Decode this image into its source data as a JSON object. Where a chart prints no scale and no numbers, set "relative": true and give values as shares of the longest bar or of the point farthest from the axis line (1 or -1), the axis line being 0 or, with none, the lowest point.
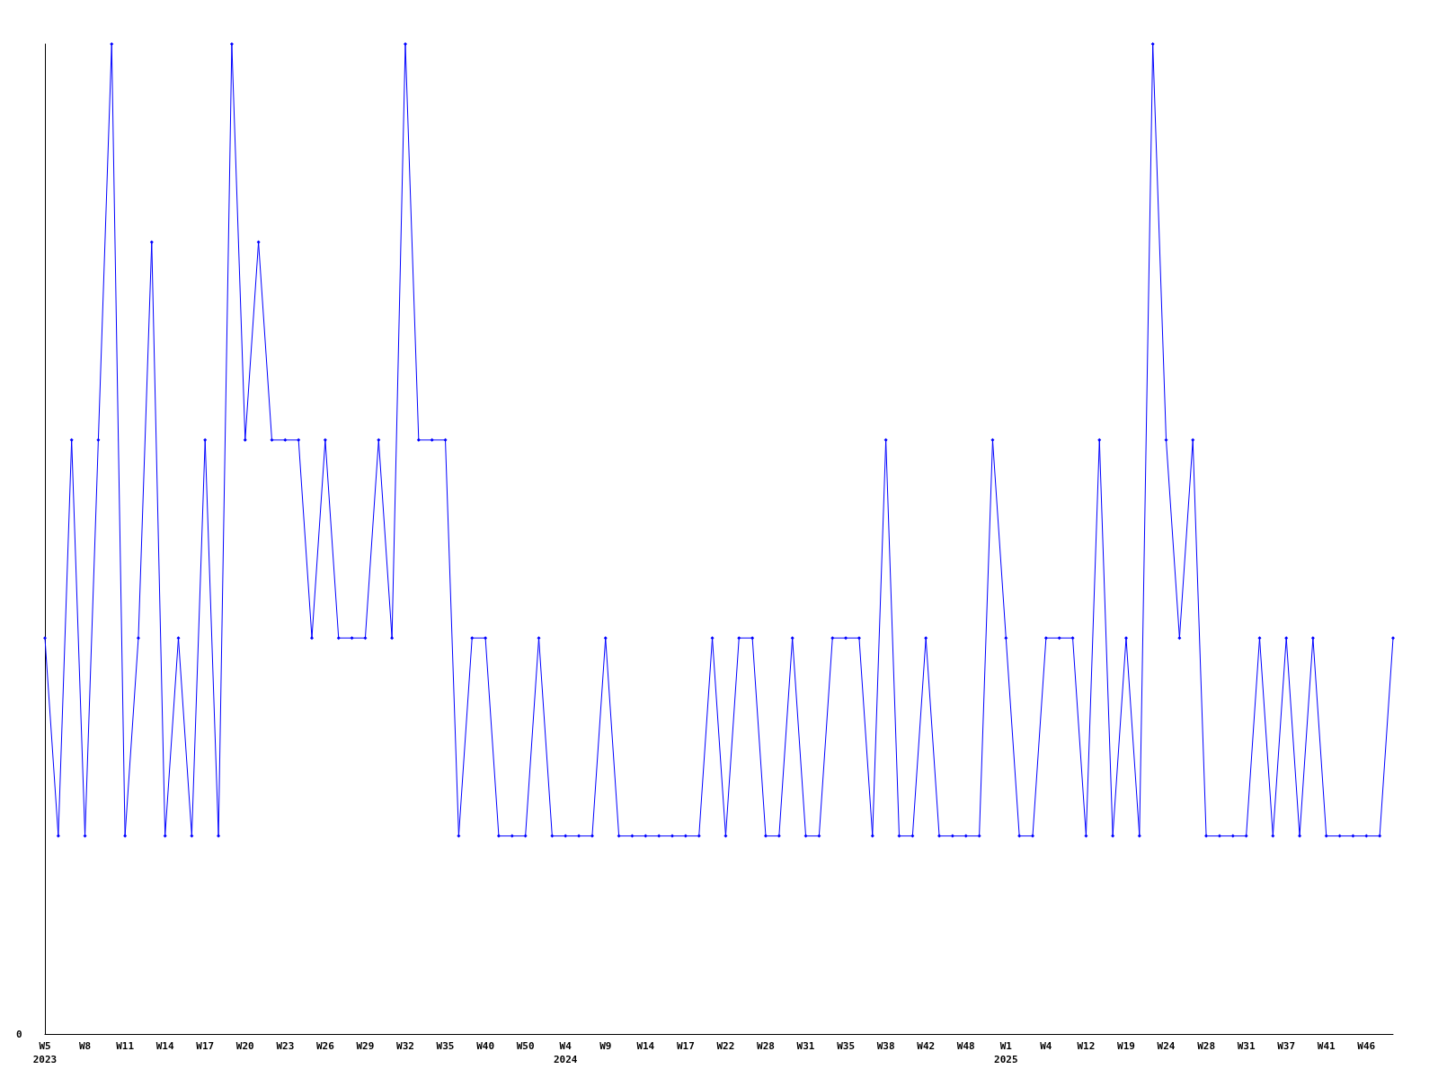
{
  "chart_data": {
    "type": "line",
    "relative": true,
    "categories": [
      "W5\n2023",
      null,
      null,
      "W8",
      null,
      null,
      "W11",
      null,
      null,
      "W14",
      null,
      null,
      "W17",
      null,
      null,
      "W20",
      null,
      null,
      "W23",
      null,
      null,
      "W26",
      null,
      null,
      "W29",
      null,
      null,
      "W32",
      null,
      null,
      "W35",
      null,
      null,
      "W40",
      null,
      null,
      "W50",
      null,
      null,
      "W4\n2024",
      null,
      null,
      "W9",
      null,
      null,
      "W14",
      null,
      null,
      "W17",
      null,
      null,
      "W22",
      null,
      null,
      "W28",
      null,
      null,
      "W31",
      null,
      null,
      "W35",
      null,
      null,
      "W38",
      null,
      null,
      "W42",
      null,
      null,
      "W48",
      null,
      null,
      "W1\n2025",
      null,
      null,
      "W4",
      null,
      null,
      "W12",
      null,
      null,
      "W19",
      null,
      null,
      "W24",
      null,
      null,
      "W28",
      null,
      null,
      "W31",
      null,
      null,
      "W37",
      null,
      null,
      "W41",
      null,
      null,
      "W46",
      null,
      null
    ],
    "series": [
      {
        "color": "#0000ff",
        "values": [
          0.4,
          0.2,
          0.6,
          0.2,
          0.6,
          1,
          0.2,
          0.4,
          0.8,
          0.2,
          0.4,
          0.2,
          0.6,
          0.2,
          1,
          0.6,
          0.8,
          0.6,
          0.6,
          0.6,
          0.4,
          0.6,
          0.4,
          0.4,
          0.4,
          0.6,
          0.4,
          1,
          0.6,
          0.6,
          0.6,
          0.2,
          0.4,
          0.4,
          0.2,
          0.2,
          0.2,
          0.4,
          0.2,
          0.2,
          0.2,
          0.2,
          0.4,
          0.2,
          0.2,
          0.2,
          0.2,
          0.2,
          0.2,
          0.2,
          0.4,
          0.2,
          0.4,
          0.4,
          0.2,
          0.2,
          0.4,
          0.2,
          0.2,
          0.4,
          0.4,
          0.4,
          0.2,
          0.6,
          0.2,
          0.2,
          0.4,
          0.2,
          0.2,
          0.2,
          0.2,
          0.6,
          0.4,
          0.2,
          0.2,
          0.4,
          0.4,
          0.4,
          0.2,
          0.6,
          0.2,
          0.4,
          0.2,
          1,
          0.6,
          0.4,
          0.6,
          0.2,
          0.2,
          0.2,
          0.2,
          0.4,
          0.2,
          0.4,
          0.2,
          0.4,
          0.2,
          0.2,
          0.2,
          0.2,
          0.2,
          0.4
        ]
      }
    ],
    "marker": "diamond",
    "line_style": "solid",
    "grid": false,
    "annotations": [
      "0"
    ]
  }
}
